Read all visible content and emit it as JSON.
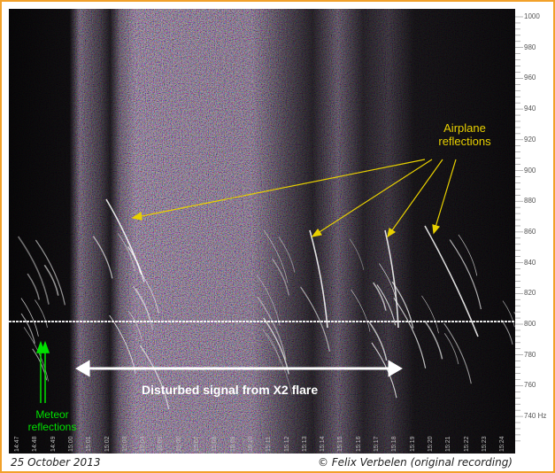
{
  "annotations": {
    "airplane": "Airplane reflections",
    "meteor": "Meteor reflections",
    "disturbed": "Disturbed signal from X2 flare"
  },
  "footer": {
    "date": "25 October 2013",
    "credit": "© Felix Verbelen (original recording)"
  },
  "frequency_axis": {
    "unit": "Hz",
    "ticks": [
      "1000",
      "980",
      "960",
      "940",
      "920",
      "900",
      "880",
      "860",
      "840",
      "820",
      "800",
      "780",
      "760",
      "740"
    ]
  },
  "time_axis_labels": [
    "14:47",
    "14:48",
    "14:49",
    "15:00",
    "15:01",
    "15:02",
    "15:03",
    "15:04",
    "15:05",
    "15:06",
    "15:07",
    "15:08",
    "15:09",
    "15:10",
    "15:11",
    "15:12",
    "15:13",
    "15:14",
    "15:15",
    "15:16",
    "15:17",
    "15:18",
    "15:19",
    "15:20",
    "15:21",
    "15:22",
    "15:23",
    "15:24"
  ],
  "colors": {
    "frame": "#f2a12a",
    "airplane_annotation": "#e8d000",
    "meteor_annotation": "#00e000",
    "disturbed_annotation": "#ffffff",
    "background": "#0a0a0a"
  }
}
